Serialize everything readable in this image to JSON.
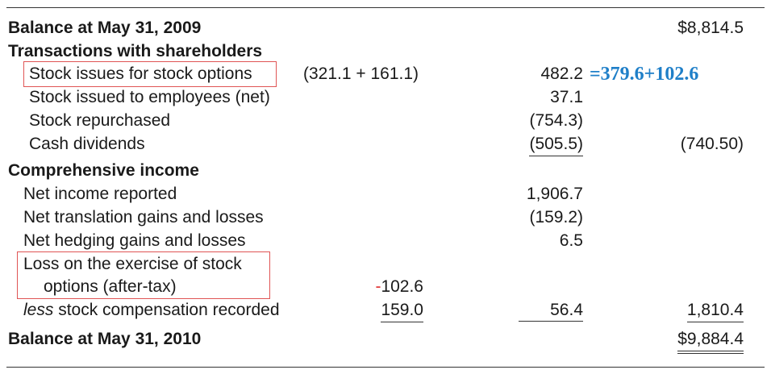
{
  "colors": {
    "highlight_box": "#e05555",
    "annotation": "#1f7fc8",
    "minus_sign": "#e03030"
  },
  "rows": {
    "balance_2009": {
      "label": "Balance at May 31, 2009",
      "col3": "$8,814.5"
    },
    "transactions_header": "Transactions with shareholders",
    "stock_issues": {
      "label": "Stock issues for stock options",
      "calc": "(321.1 + 161.1)",
      "col2": "482.2",
      "annotation": "=379.6+102.6"
    },
    "stock_employees": {
      "label": "Stock issued to employees (net)",
      "col2": "37.1"
    },
    "stock_repurchased": {
      "label": "Stock repurchased",
      "col2": "(754.3)"
    },
    "cash_dividends": {
      "label": "Cash dividends",
      "col2": "(505.5)",
      "col3": "(740.50)"
    },
    "comprehensive_header": "Comprehensive income",
    "net_income": {
      "label": "Net income reported",
      "col2": "1,906.7"
    },
    "translation": {
      "label": "Net translation gains and losses",
      "col2": "(159.2)"
    },
    "hedging": {
      "label": "Net hedging gains and losses",
      "col2": "6.5"
    },
    "loss_exercise": {
      "label_line1": "Loss on the exercise of stock",
      "label_line2": "options (after-tax)",
      "minus": "-",
      "col1": "102.6"
    },
    "less_comp": {
      "label_italic": "less",
      "label_rest": " stock compensation recorded",
      "col1": "159.0",
      "col2": "56.4",
      "col3": "1,810.4"
    },
    "balance_2010": {
      "label": "Balance at May 31, 2010",
      "col3": "$9,884.4"
    }
  }
}
